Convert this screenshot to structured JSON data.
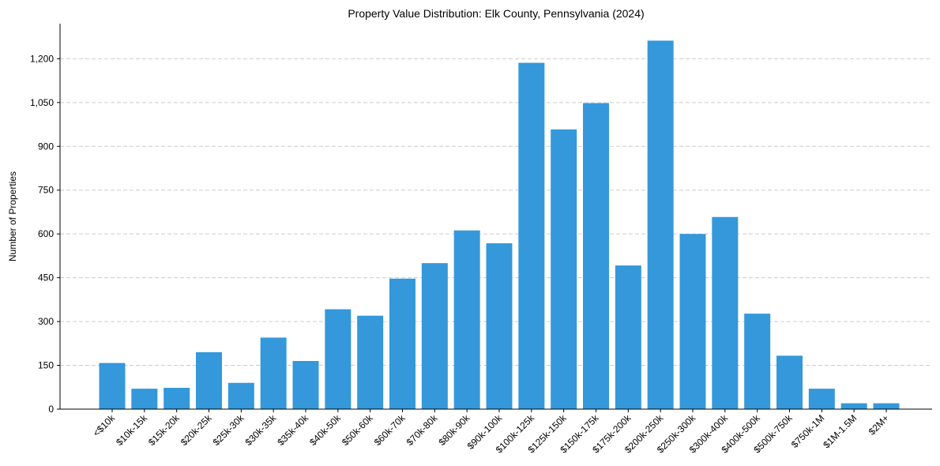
{
  "chart_data": {
    "type": "bar",
    "title": "Property Value Distribution: Elk County, Pennsylvania (2024)",
    "xlabel": "",
    "ylabel": "Number of Properties",
    "categories": [
      "<$10k",
      "$10k-15k",
      "$15k-20k",
      "$20k-25k",
      "$25k-30k",
      "$30k-35k",
      "$35k-40k",
      "$40k-50k",
      "$50k-60k",
      "$60k-70k",
      "$70k-80k",
      "$80k-90k",
      "$90k-100k",
      "$100k-125k",
      "$125k-150k",
      "$150k-175k",
      "$175k-200k",
      "$200k-250k",
      "$250k-300k",
      "$300k-400k",
      "$400k-500k",
      "$500k-750k",
      "$750k-1M",
      "$1M-1.5M",
      "$2M+"
    ],
    "values": [
      158,
      70,
      73,
      195,
      90,
      245,
      165,
      342,
      320,
      447,
      500,
      612,
      568,
      1186,
      958,
      1048,
      492,
      1262,
      600,
      658,
      327,
      183,
      70,
      20,
      20
    ],
    "ylim": [
      0,
      1320
    ],
    "yticks": [
      0,
      150,
      300,
      450,
      600,
      750,
      900,
      1050,
      1200
    ],
    "ytick_labels": [
      "0",
      "150",
      "300",
      "450",
      "600",
      "750",
      "900",
      "1,050",
      "1,200"
    ],
    "grid": true,
    "bar_color": "#3498db"
  }
}
